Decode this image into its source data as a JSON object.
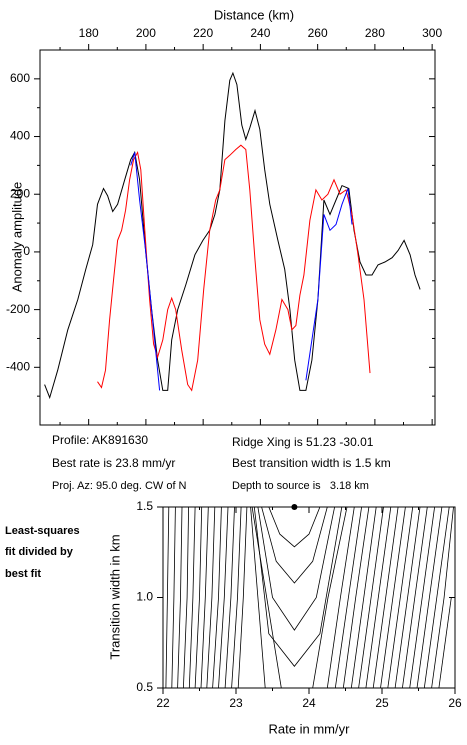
{
  "annotations": {
    "profile": "Profile: AK891630",
    "best_rate": "Best rate is 23.8 mm/yr",
    "proj_az": "Proj. Az: 95.0 deg. CW of N",
    "ridge_xing": "Ridge Xing is 51.23 -30.01",
    "best_width": "Best transition width is 1.5 km",
    "depth": "Depth to source is   3.18 km",
    "fit_note": [
      "Least-squares",
      "fit divided by",
      "best fit"
    ]
  },
  "chart_data": [
    {
      "type": "line",
      "xlabel": "Distance (km)",
      "ylabel": "Anomaly amplitude",
      "xaxis_position": "top",
      "xlim": [
        163,
        301
      ],
      "ylim": [
        -600,
        700
      ],
      "xticks": [
        180,
        200,
        220,
        240,
        260,
        280,
        300
      ],
      "xminorticks": [
        170,
        190,
        210,
        230,
        250,
        270,
        290
      ],
      "yticks": [
        -400,
        -200,
        0,
        200,
        400,
        600
      ],
      "yminorticks": [
        -500,
        -300,
        -100,
        100,
        300,
        500
      ],
      "series": [
        {
          "color": "#000000",
          "x": [
            164.6,
            166.4,
            169.2,
            172.7,
            176.2,
            179.0,
            181.4,
            183.1,
            185.2,
            186.6,
            188.4,
            190.1,
            192.6,
            194.7,
            196.1,
            197.8,
            199.9,
            202.0,
            204.1,
            205.9,
            207.6,
            209.0,
            211.1,
            213.9,
            217.1,
            219.9,
            222.3,
            224.1,
            225.8,
            227.6,
            229.3,
            230.4,
            231.8,
            233.5,
            234.9,
            236.3,
            238.1,
            239.8,
            241.5,
            243.3,
            246.1,
            248.5,
            250.3,
            252.0,
            253.8,
            255.9,
            258.0,
            260.1,
            262.2,
            264.3,
            266.4,
            268.5,
            270.9,
            272.7,
            274.8,
            276.9,
            279.0,
            281.1,
            283.5,
            286.0,
            288.1,
            290.2,
            292.3,
            294.0,
            295.8
          ],
          "values": [
            -460,
            -505,
            -410,
            -270,
            -165,
            -60,
            25,
            165,
            220,
            195,
            140,
            165,
            250,
            320,
            345,
            250,
            5,
            -200,
            -375,
            -480,
            -480,
            -305,
            -200,
            -115,
            -10,
            40,
            75,
            130,
            215,
            455,
            595,
            620,
            580,
            440,
            390,
            430,
            490,
            425,
            285,
            165,
            40,
            -60,
            -200,
            -375,
            -480,
            -480,
            -375,
            -165,
            180,
            130,
            180,
            230,
            220,
            75,
            -35,
            -80,
            -80,
            -45,
            -35,
            -20,
            5,
            40,
            -10,
            -80,
            -130
          ]
        },
        {
          "color": "#ff0000",
          "x": [
            183.1,
            184.5,
            185.9,
            187.3,
            188.7,
            190.1,
            191.5,
            192.9,
            194.3,
            195.7,
            197.1,
            198.2,
            199.6,
            201.3,
            202.7,
            204.1,
            205.9,
            207.6,
            209.0,
            210.4,
            212.5,
            214.6,
            216.0,
            218.1,
            220.2,
            222.3,
            224.4,
            225.8,
            227.6,
            229.3,
            231.4,
            233.2,
            234.9,
            236.3,
            238.1,
            239.8,
            241.5,
            243.3,
            245.4,
            247.5,
            249.6,
            251.0,
            252.4,
            253.8,
            255.2,
            257.3,
            259.4,
            261.5,
            263.6,
            265.7,
            267.8,
            269.9,
            272.0,
            274.1,
            276.2,
            278.3
          ],
          "values": [
            -450,
            -470,
            -410,
            -235,
            -95,
            40,
            75,
            145,
            250,
            320,
            345,
            285,
            75,
            -165,
            -320,
            -365,
            -305,
            -200,
            -160,
            -200,
            -340,
            -460,
            -480,
            -375,
            -130,
            75,
            180,
            215,
            320,
            335,
            355,
            370,
            355,
            215,
            -28,
            -235,
            -320,
            -355,
            -270,
            -165,
            -200,
            -270,
            -255,
            -150,
            -80,
            110,
            215,
            180,
            200,
            250,
            200,
            215,
            130,
            -10,
            -165,
            -420
          ]
        },
        {
          "color": "#0000ff",
          "x": [
            194.7,
            196.1,
            197.8,
            199.9,
            202.0,
            204.8,
            230,
            255.9,
            258.0,
            260.1,
            262.2,
            264.3,
            266.4,
            268.5,
            270.6,
            272.0
          ],
          "values": [
            300,
            345,
            180,
            5,
            -200,
            -480,
            null,
            -445,
            -305,
            -165,
            130,
            75,
            95,
            165,
            220,
            95
          ]
        }
      ]
    },
    {
      "type": "contour",
      "xlabel": "Rate in mm/yr",
      "ylabel": "Transition width in km",
      "xlim": [
        22,
        26
      ],
      "ylim": [
        0.5,
        1.5
      ],
      "xticks": [
        22,
        23,
        24,
        25,
        26
      ],
      "xminorticks": [
        22.5,
        23.5,
        24.5,
        25.5
      ],
      "yticks": [
        0.5,
        {
          "value": 1,
          "label": "1.0"
        },
        1.5
      ],
      "best": {
        "x": 23.8,
        "y": 1.5
      },
      "series": [
        {
          "x": [
            22.08,
            22.06,
            22.04
          ],
          "values": [
            1.5,
            1.0,
            0.5
          ]
        },
        {
          "x": [
            22.17,
            22.15,
            22.12
          ],
          "values": [
            1.5,
            1.0,
            0.5
          ]
        },
        {
          "x": [
            22.26,
            22.24,
            22.2
          ],
          "values": [
            1.5,
            1.0,
            0.5
          ]
        },
        {
          "x": [
            22.35,
            22.33,
            22.28
          ],
          "values": [
            1.5,
            1.0,
            0.5
          ]
        },
        {
          "x": [
            22.44,
            22.41,
            22.36
          ],
          "values": [
            1.5,
            1.0,
            0.5
          ]
        },
        {
          "x": [
            22.53,
            22.5,
            22.44
          ],
          "values": [
            1.5,
            1.0,
            0.5
          ]
        },
        {
          "x": [
            22.62,
            22.58,
            22.52
          ],
          "values": [
            1.5,
            1.0,
            0.5
          ]
        },
        {
          "x": [
            22.71,
            22.67,
            22.6
          ],
          "values": [
            1.5,
            1.0,
            0.5
          ]
        },
        {
          "x": [
            22.8,
            22.76,
            22.68
          ],
          "values": [
            1.5,
            1.0,
            0.5
          ]
        },
        {
          "x": [
            22.89,
            22.84,
            22.76
          ],
          "values": [
            1.5,
            1.0,
            0.5
          ]
        },
        {
          "x": [
            22.98,
            22.93,
            22.85
          ],
          "values": [
            1.5,
            1.0,
            0.5
          ]
        },
        {
          "x": [
            23.07,
            23.02,
            22.94
          ],
          "values": [
            1.5,
            1.0,
            0.5
          ]
        },
        {
          "x": [
            23.15,
            23.1,
            23.03
          ],
          "values": [
            1.5,
            1.0,
            0.5
          ]
        },
        {
          "x": [
            23.2,
            23.3,
            23.4
          ],
          "values": [
            1.5,
            1.0,
            0.5
          ]
        },
        {
          "x": [
            23.45,
            23.6,
            23.8,
            24.0,
            24.15
          ],
          "values": [
            1.5,
            1.35,
            1.28,
            1.35,
            1.5
          ]
        },
        {
          "x": [
            23.35,
            23.55,
            23.8,
            24.05,
            24.25
          ],
          "values": [
            1.5,
            1.2,
            1.08,
            1.2,
            1.5
          ]
        },
        {
          "x": [
            23.3,
            23.5,
            23.8,
            24.1,
            24.35
          ],
          "values": [
            1.5,
            1.0,
            0.82,
            1.0,
            1.5
          ]
        },
        {
          "x": [
            23.25,
            23.45,
            23.8,
            24.15,
            24.45
          ],
          "values": [
            1.5,
            0.8,
            0.62,
            0.8,
            1.5
          ]
        },
        {
          "x": [
            23.22,
            23.42,
            23.62
          ],
          "values": [
            1.5,
            1.0,
            0.5
          ]
        },
        {
          "x": [
            24.52,
            24.26,
            24.05
          ],
          "values": [
            1.5,
            1.0,
            0.5
          ]
        },
        {
          "x": [
            24.62,
            24.43,
            24.25
          ],
          "values": [
            1.5,
            1.0,
            0.5
          ]
        },
        {
          "x": [
            24.72,
            24.54,
            24.36
          ],
          "values": [
            1.5,
            1.0,
            0.5
          ]
        },
        {
          "x": [
            24.82,
            24.64,
            24.47
          ],
          "values": [
            1.5,
            1.0,
            0.5
          ]
        },
        {
          "x": [
            24.92,
            24.75,
            24.58
          ],
          "values": [
            1.5,
            1.0,
            0.5
          ]
        },
        {
          "x": [
            25.02,
            24.85,
            24.68
          ],
          "values": [
            1.5,
            1.0,
            0.5
          ]
        },
        {
          "x": [
            25.12,
            24.95,
            24.78
          ],
          "values": [
            1.5,
            1.0,
            0.5
          ]
        },
        {
          "x": [
            25.22,
            25.05,
            24.88
          ],
          "values": [
            1.5,
            1.0,
            0.5
          ]
        },
        {
          "x": [
            25.32,
            25.15,
            24.98
          ],
          "values": [
            1.5,
            1.0,
            0.5
          ]
        },
        {
          "x": [
            25.42,
            25.25,
            25.08
          ],
          "values": [
            1.5,
            1.0,
            0.5
          ]
        },
        {
          "x": [
            25.52,
            25.35,
            25.18
          ],
          "values": [
            1.5,
            1.0,
            0.5
          ]
        },
        {
          "x": [
            25.62,
            25.45,
            25.28
          ],
          "values": [
            1.5,
            1.0,
            0.5
          ]
        },
        {
          "x": [
            25.72,
            25.55,
            25.38
          ],
          "values": [
            1.5,
            1.0,
            0.5
          ]
        },
        {
          "x": [
            25.82,
            25.65,
            25.48
          ],
          "values": [
            1.5,
            1.0,
            0.5
          ]
        },
        {
          "x": [
            25.92,
            25.75,
            25.58
          ],
          "values": [
            1.5,
            1.0,
            0.5
          ]
        },
        {
          "x": [
            25.98,
            25.85,
            25.68
          ],
          "values": [
            1.5,
            1.0,
            0.5
          ]
        },
        {
          "x": [
            25.95,
            25.78
          ],
          "values": [
            1.0,
            0.5
          ]
        },
        {
          "x": [
            25.88
          ],
          "values": [
            0.5
          ]
        }
      ]
    }
  ]
}
